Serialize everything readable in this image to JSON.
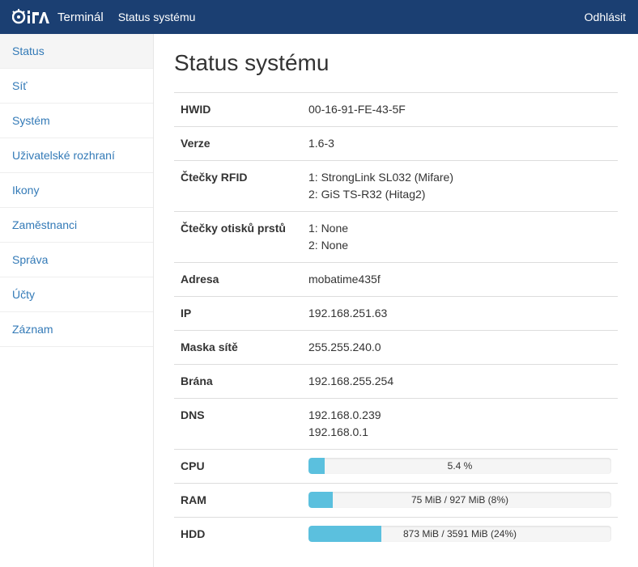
{
  "navbar": {
    "brand": "Terminál",
    "status_link": "Status systému",
    "logout": "Odhlásit"
  },
  "sidebar": {
    "items": [
      {
        "label": "Status",
        "active": true
      },
      {
        "label": "Síť",
        "active": false
      },
      {
        "label": "Systém",
        "active": false
      },
      {
        "label": "Uživatelské rozhraní",
        "active": false
      },
      {
        "label": "Ikony",
        "active": false
      },
      {
        "label": "Zaměstnanci",
        "active": false
      },
      {
        "label": "Správa",
        "active": false
      },
      {
        "label": "Účty",
        "active": false
      },
      {
        "label": "Záznam",
        "active": false
      }
    ]
  },
  "page": {
    "title": "Status systému"
  },
  "rows": {
    "hwid": {
      "key": "HWID",
      "val": "00-16-91-FE-43-5F"
    },
    "version": {
      "key": "Verze",
      "val": "1.6-3"
    },
    "rfid": {
      "key": "Čtečky RFID",
      "line1": "1: StrongLink SL032 (Mifare)",
      "line2": "2: GiS TS-R32 (Hitag2)"
    },
    "finger": {
      "key": "Čtečky otisků prstů",
      "line1": "1: None",
      "line2": "2: None"
    },
    "address": {
      "key": "Adresa",
      "val": "mobatime435f"
    },
    "ip": {
      "key": "IP",
      "val": "192.168.251.63"
    },
    "mask": {
      "key": "Maska sítě",
      "val": "255.255.240.0"
    },
    "gateway": {
      "key": "Brána",
      "val": "192.168.255.254"
    },
    "dns": {
      "key": "DNS",
      "line1": "192.168.0.239",
      "line2": "192.168.0.1"
    },
    "cpu": {
      "key": "CPU",
      "label": "5.4 %",
      "percent": 5.4
    },
    "ram": {
      "key": "RAM",
      "label": "75 MiB / 927 MiB (8%)",
      "percent": 8
    },
    "hdd": {
      "key": "HDD",
      "label": "873 MiB / 3591 MiB (24%)",
      "percent": 24
    }
  },
  "colors": {
    "navbar_bg": "#1b3f72",
    "link": "#337ab7",
    "progress_bg": "#f5f5f5",
    "progress_bar": "#5bc0de",
    "border": "#ddd"
  }
}
